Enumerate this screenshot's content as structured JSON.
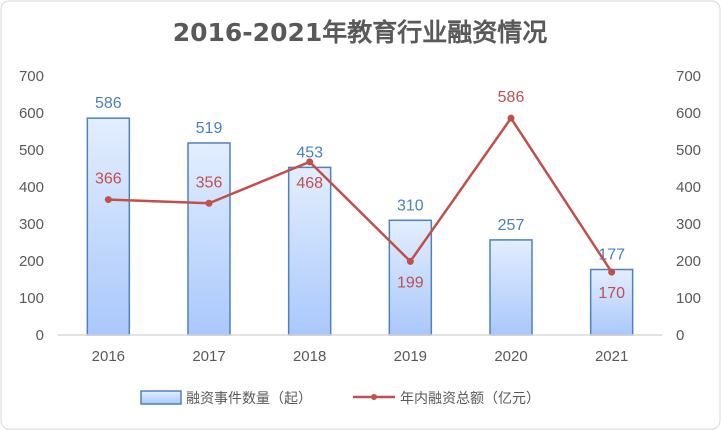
{
  "chart_data": {
    "type": "bar+line",
    "title": "2016-2021年教育行业融资情况",
    "categories": [
      "2016",
      "2017",
      "2018",
      "2019",
      "2020",
      "2021"
    ],
    "series": [
      {
        "name": "融资事件数量（起）",
        "type": "bar",
        "axis": "left",
        "values": [
          586,
          519,
          453,
          310,
          257,
          177
        ],
        "color": "#4f81bd"
      },
      {
        "name": "年内融资总额（亿元）",
        "type": "line",
        "axis": "right",
        "values": [
          366,
          356,
          468,
          199,
          586,
          170
        ],
        "color": "#c0504d"
      }
    ],
    "y_left": {
      "range": [
        0,
        700
      ],
      "ticks": [
        0,
        100,
        200,
        300,
        400,
        500,
        600,
        700
      ]
    },
    "y_right": {
      "range": [
        0,
        700
      ],
      "ticks": [
        0,
        100,
        200,
        300,
        400,
        500,
        600,
        700
      ]
    },
    "line_label_positions": [
      "above",
      "above",
      "below",
      "below",
      "above",
      "below"
    ],
    "legend_position": "bottom",
    "grid": false
  }
}
